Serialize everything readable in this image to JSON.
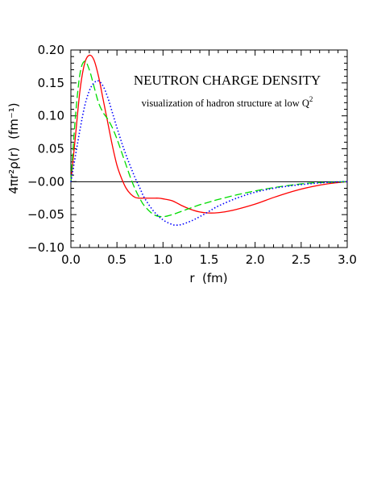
{
  "chart_data": {
    "type": "line",
    "title": "NEUTRON CHARGE DENSITY",
    "subtitle": "visualization of hadron structure at low Q",
    "subtitle_sup": "2",
    "xlabel": "r  (fm)",
    "ylabel": "4πr²ρ(r)  (fm⁻¹)",
    "xlim": [
      0.0,
      3.0
    ],
    "ylim": [
      -0.1,
      0.2
    ],
    "x_ticks": [
      "0.0",
      "0.5",
      "1.0",
      "1.5",
      "2.0",
      "2.5",
      "3.0"
    ],
    "y_ticks": [
      "−0.10",
      "−0.05",
      "−0.00",
      "0.05",
      "0.10",
      "0.15",
      "0.20"
    ],
    "zero_line": true,
    "series": [
      {
        "color": "#ff0000",
        "style": "solid",
        "x": [
          0.0,
          0.05,
          0.1,
          0.15,
          0.2,
          0.25,
          0.3,
          0.35,
          0.4,
          0.45,
          0.5,
          0.55,
          0.6,
          0.65,
          0.7,
          0.75,
          0.8,
          0.85,
          0.9,
          0.95,
          1.0,
          1.1,
          1.2,
          1.3,
          1.4,
          1.5,
          1.6,
          1.7,
          1.8,
          2.0,
          2.2,
          2.4,
          2.6,
          2.8,
          3.0
        ],
        "y": [
          0.0,
          0.07,
          0.14,
          0.18,
          0.192,
          0.185,
          0.16,
          0.125,
          0.09,
          0.055,
          0.025,
          0.005,
          -0.01,
          -0.019,
          -0.024,
          -0.025,
          -0.025,
          -0.025,
          -0.025,
          -0.025,
          -0.026,
          -0.029,
          -0.036,
          -0.042,
          -0.046,
          -0.0475,
          -0.047,
          -0.045,
          -0.042,
          -0.034,
          -0.024,
          -0.015,
          -0.008,
          -0.003,
          0.0
        ]
      },
      {
        "color": "#00dd00",
        "style": "dashed",
        "x": [
          0.0,
          0.05,
          0.1,
          0.15,
          0.2,
          0.25,
          0.3,
          0.35,
          0.4,
          0.45,
          0.5,
          0.55,
          0.6,
          0.65,
          0.7,
          0.75,
          0.8,
          0.9,
          1.0,
          1.1,
          1.2,
          1.3,
          1.4,
          1.5,
          1.6,
          1.8,
          2.0,
          2.2,
          2.4,
          2.6,
          2.8,
          3.0
        ],
        "y": [
          0.0,
          0.1,
          0.165,
          0.183,
          0.17,
          0.145,
          0.12,
          0.105,
          0.095,
          0.082,
          0.065,
          0.045,
          0.025,
          0.005,
          -0.012,
          -0.026,
          -0.037,
          -0.05,
          -0.053,
          -0.05,
          -0.045,
          -0.04,
          -0.035,
          -0.031,
          -0.027,
          -0.02,
          -0.014,
          -0.009,
          -0.005,
          -0.002,
          -0.001,
          0.0
        ]
      },
      {
        "color": "#0000ff",
        "style": "dotted",
        "x": [
          0.0,
          0.05,
          0.1,
          0.15,
          0.2,
          0.25,
          0.3,
          0.35,
          0.4,
          0.45,
          0.5,
          0.55,
          0.6,
          0.65,
          0.7,
          0.75,
          0.8,
          0.9,
          1.0,
          1.1,
          1.15,
          1.2,
          1.3,
          1.4,
          1.5,
          1.6,
          1.8,
          2.0,
          2.2,
          2.4,
          2.6,
          2.8,
          3.0
        ],
        "y": [
          0.0,
          0.04,
          0.08,
          0.115,
          0.138,
          0.15,
          0.153,
          0.145,
          0.128,
          0.105,
          0.082,
          0.06,
          0.04,
          0.022,
          0.005,
          -0.01,
          -0.025,
          -0.045,
          -0.058,
          -0.065,
          -0.066,
          -0.065,
          -0.06,
          -0.053,
          -0.045,
          -0.037,
          -0.025,
          -0.016,
          -0.01,
          -0.006,
          -0.003,
          -0.001,
          0.0
        ]
      }
    ]
  }
}
